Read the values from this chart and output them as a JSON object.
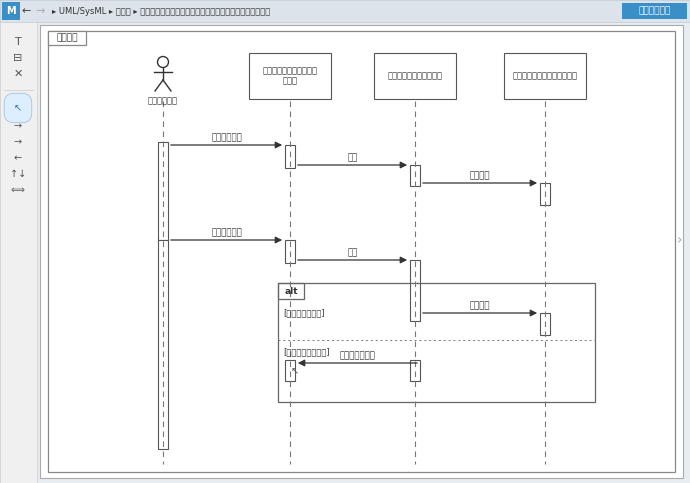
{
  "bg_color": "#e8edf2",
  "diagram_bg": "#ffffff",
  "frame_label": "フレーム",
  "title_text": "▸ UML/SysML ▸ モデル ▸ コンポーネント間シーケンス図（複合フラグメント追加）",
  "btn_text": "シーケンス図",
  "actor0_label": "：ドライバー",
  "actor1_label": "ドアスイッチ：スイッチ\nパネル",
  "actor2_label": "ドア制御：コントローラ",
  "actor3_label": "ドアロック：アクチゥエータ",
  "msg1": "スイッチ操作",
  "msg2": "施鍵",
  "msg3": "施鍵動作",
  "msg4": "スイッチ操作",
  "msg5": "解鍵",
  "msg6": "解鍵動作",
  "msg7": "キャンセル通知",
  "alt_label": "alt",
  "guard1": "[車速＜一定速度]",
  "guard2": "[車速＞＝一定速度]",
  "header_color": "#3a8fc7",
  "lifeline_color": "#666666",
  "box_border": "#555555",
  "act_box_color": "#ffffff"
}
